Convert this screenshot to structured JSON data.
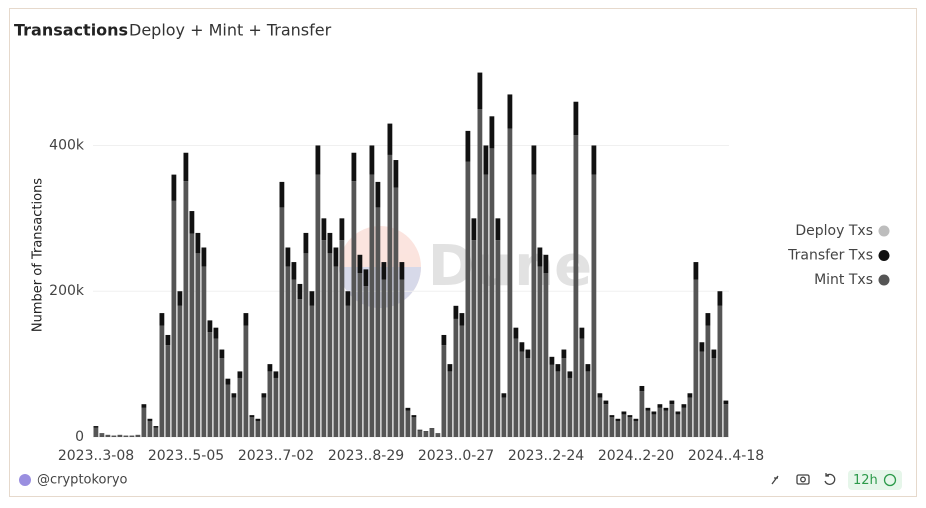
{
  "chart_data": {
    "type": "bar",
    "stacked": true,
    "title": "Transactions",
    "subtitle": "Deploy + Mint + Transfer",
    "y_label": "Number of Transactions",
    "watermark": "Dune",
    "categories": [
      "2023..3-08",
      null,
      null,
      null,
      null,
      null,
      null,
      null,
      null,
      null,
      null,
      null,
      null,
      null,
      null,
      "2023..5-05",
      null,
      null,
      null,
      null,
      null,
      null,
      null,
      null,
      null,
      null,
      null,
      null,
      null,
      null,
      "2023..7-02",
      null,
      null,
      null,
      null,
      null,
      null,
      null,
      null,
      null,
      null,
      null,
      null,
      null,
      null,
      "2023..8-29",
      null,
      null,
      null,
      null,
      null,
      null,
      null,
      null,
      null,
      null,
      null,
      null,
      null,
      null,
      "2023..0-27",
      null,
      null,
      null,
      null,
      null,
      null,
      null,
      null,
      null,
      null,
      null,
      null,
      null,
      null,
      "2023..2-24",
      null,
      null,
      null,
      null,
      null,
      null,
      null,
      null,
      null,
      null,
      null,
      null,
      null,
      null,
      "2024..2-20",
      null,
      null,
      null,
      null,
      null,
      null,
      null,
      null,
      null,
      null,
      null,
      null,
      null,
      null,
      "2024..4-18"
    ],
    "series": [
      {
        "name": "Mint Txs",
        "color": "#555555",
        "values": [
          13000,
          4000,
          3000,
          2000,
          3000,
          2000,
          2000,
          3000,
          40000,
          22000,
          13000,
          153000,
          126000,
          324000,
          180000,
          351000,
          279000,
          252000,
          234000,
          144000,
          135000,
          108000,
          72000,
          54000,
          81000,
          153000,
          27000,
          22000,
          54000,
          90000,
          81000,
          315000,
          234000,
          216000,
          189000,
          252000,
          180000,
          360000,
          270000,
          252000,
          234000,
          270000,
          180000,
          351000,
          225000,
          207000,
          360000,
          315000,
          216000,
          387000,
          342000,
          216000,
          36000,
          27000,
          9000,
          7000,
          11000,
          4000,
          126000,
          90000,
          162000,
          153000,
          378000,
          270000,
          450000,
          360000,
          396000,
          270000,
          54000,
          423000,
          135000,
          117000,
          108000,
          360000,
          234000,
          225000,
          99000,
          90000,
          108000,
          81000,
          414000,
          135000,
          90000,
          360000,
          54000,
          45000,
          27000,
          22000,
          31000,
          27000,
          22000,
          63000,
          36000,
          31000,
          40000,
          36000,
          45000,
          31000,
          40000,
          54000,
          216000,
          117000,
          153000,
          108000,
          180000,
          45000
        ]
      },
      {
        "name": "Transfer Txs",
        "color": "#111111",
        "values": [
          2000,
          1000,
          0,
          0,
          0,
          0,
          0,
          0,
          5000,
          3000,
          2000,
          17000,
          14000,
          36000,
          20000,
          39000,
          31000,
          28000,
          26000,
          16000,
          15000,
          12000,
          8000,
          6000,
          9000,
          17000,
          3000,
          3000,
          6000,
          10000,
          9000,
          35000,
          26000,
          24000,
          21000,
          28000,
          20000,
          40000,
          30000,
          28000,
          26000,
          30000,
          20000,
          39000,
          25000,
          23000,
          40000,
          35000,
          24000,
          43000,
          38000,
          24000,
          4000,
          3000,
          1000,
          1000,
          1000,
          1000,
          14000,
          10000,
          18000,
          17000,
          42000,
          30000,
          50000,
          40000,
          44000,
          30000,
          6000,
          47000,
          15000,
          13000,
          12000,
          40000,
          26000,
          25000,
          11000,
          10000,
          12000,
          9000,
          46000,
          15000,
          10000,
          40000,
          6000,
          5000,
          3000,
          3000,
          4000,
          3000,
          3000,
          7000,
          4000,
          4000,
          5000,
          4000,
          5000,
          4000,
          5000,
          6000,
          24000,
          13000,
          17000,
          12000,
          20000,
          5000
        ]
      },
      {
        "name": "Deploy Txs",
        "color": "#bdbdbd",
        "values": [
          0,
          0,
          0,
          0,
          0,
          0,
          0,
          0,
          0,
          0,
          0,
          0,
          0,
          0,
          0,
          0,
          0,
          0,
          0,
          0,
          0,
          0,
          0,
          0,
          0,
          0,
          0,
          0,
          0,
          0,
          0,
          0,
          0,
          0,
          0,
          0,
          0,
          0,
          0,
          0,
          0,
          0,
          0,
          0,
          0,
          0,
          0,
          0,
          0,
          0,
          0,
          0,
          0,
          0,
          0,
          0,
          0,
          0,
          0,
          0,
          0,
          0,
          0,
          0,
          0,
          0,
          0,
          0,
          0,
          0,
          0,
          0,
          0,
          0,
          0,
          0,
          0,
          0,
          0,
          0,
          0,
          0,
          0,
          0,
          0,
          0,
          0,
          0,
          0,
          0,
          0,
          0,
          0,
          0,
          0,
          0,
          0,
          0,
          0,
          0,
          0,
          0,
          0,
          0,
          0,
          0
        ]
      }
    ],
    "legend_order": [
      2,
      1,
      0
    ],
    "ylim": [
      0,
      520000
    ],
    "yticks": [
      0,
      {
        "value": 200000,
        "label": "200k"
      },
      {
        "value": 400000,
        "label": "400k"
      }
    ],
    "grid": true
  },
  "footer": {
    "author": "@cryptokoryo",
    "refresh": "12h"
  }
}
